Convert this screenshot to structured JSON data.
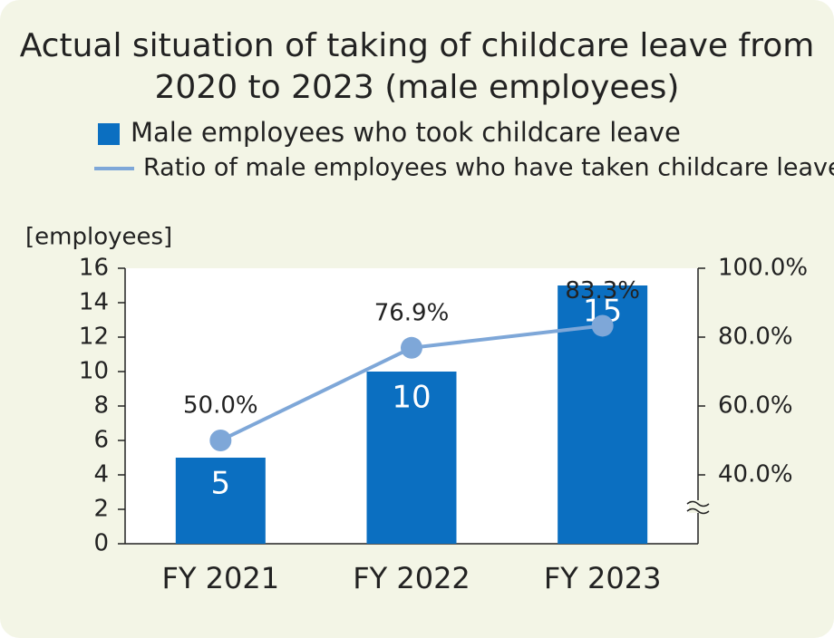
{
  "chart_data": {
    "type": "bar",
    "title": "Actual situation of taking of childcare leave from 2020 to 2023 (male employees)",
    "y_label": "[employees]",
    "categories": [
      "FY 2021",
      "FY 2022",
      "FY 2023"
    ],
    "series": [
      {
        "name": "Male employees who took childcare leave",
        "color": "#0b6fc1",
        "values": [
          5,
          10,
          15
        ]
      },
      {
        "name": "Ratio of male employees who have taken childcare leave",
        "color": "#7ea7d8",
        "type": "line",
        "axis": "y2",
        "values": [
          50.0,
          76.9,
          83.3
        ],
        "value_labels": [
          "50.0%",
          "76.9%",
          "83.3%"
        ]
      }
    ],
    "ylim": [
      0,
      16
    ],
    "yticks": [
      0,
      2,
      4,
      6,
      8,
      10,
      12,
      14,
      16
    ],
    "y2lim": [
      20,
      100
    ],
    "y2ticks": [
      {
        "value": 40,
        "label": "40.0%"
      },
      {
        "value": 60,
        "label": "60.0%"
      },
      {
        "value": 80,
        "label": "80.0%"
      },
      {
        "value": 100,
        "label": "100.0%"
      }
    ]
  }
}
